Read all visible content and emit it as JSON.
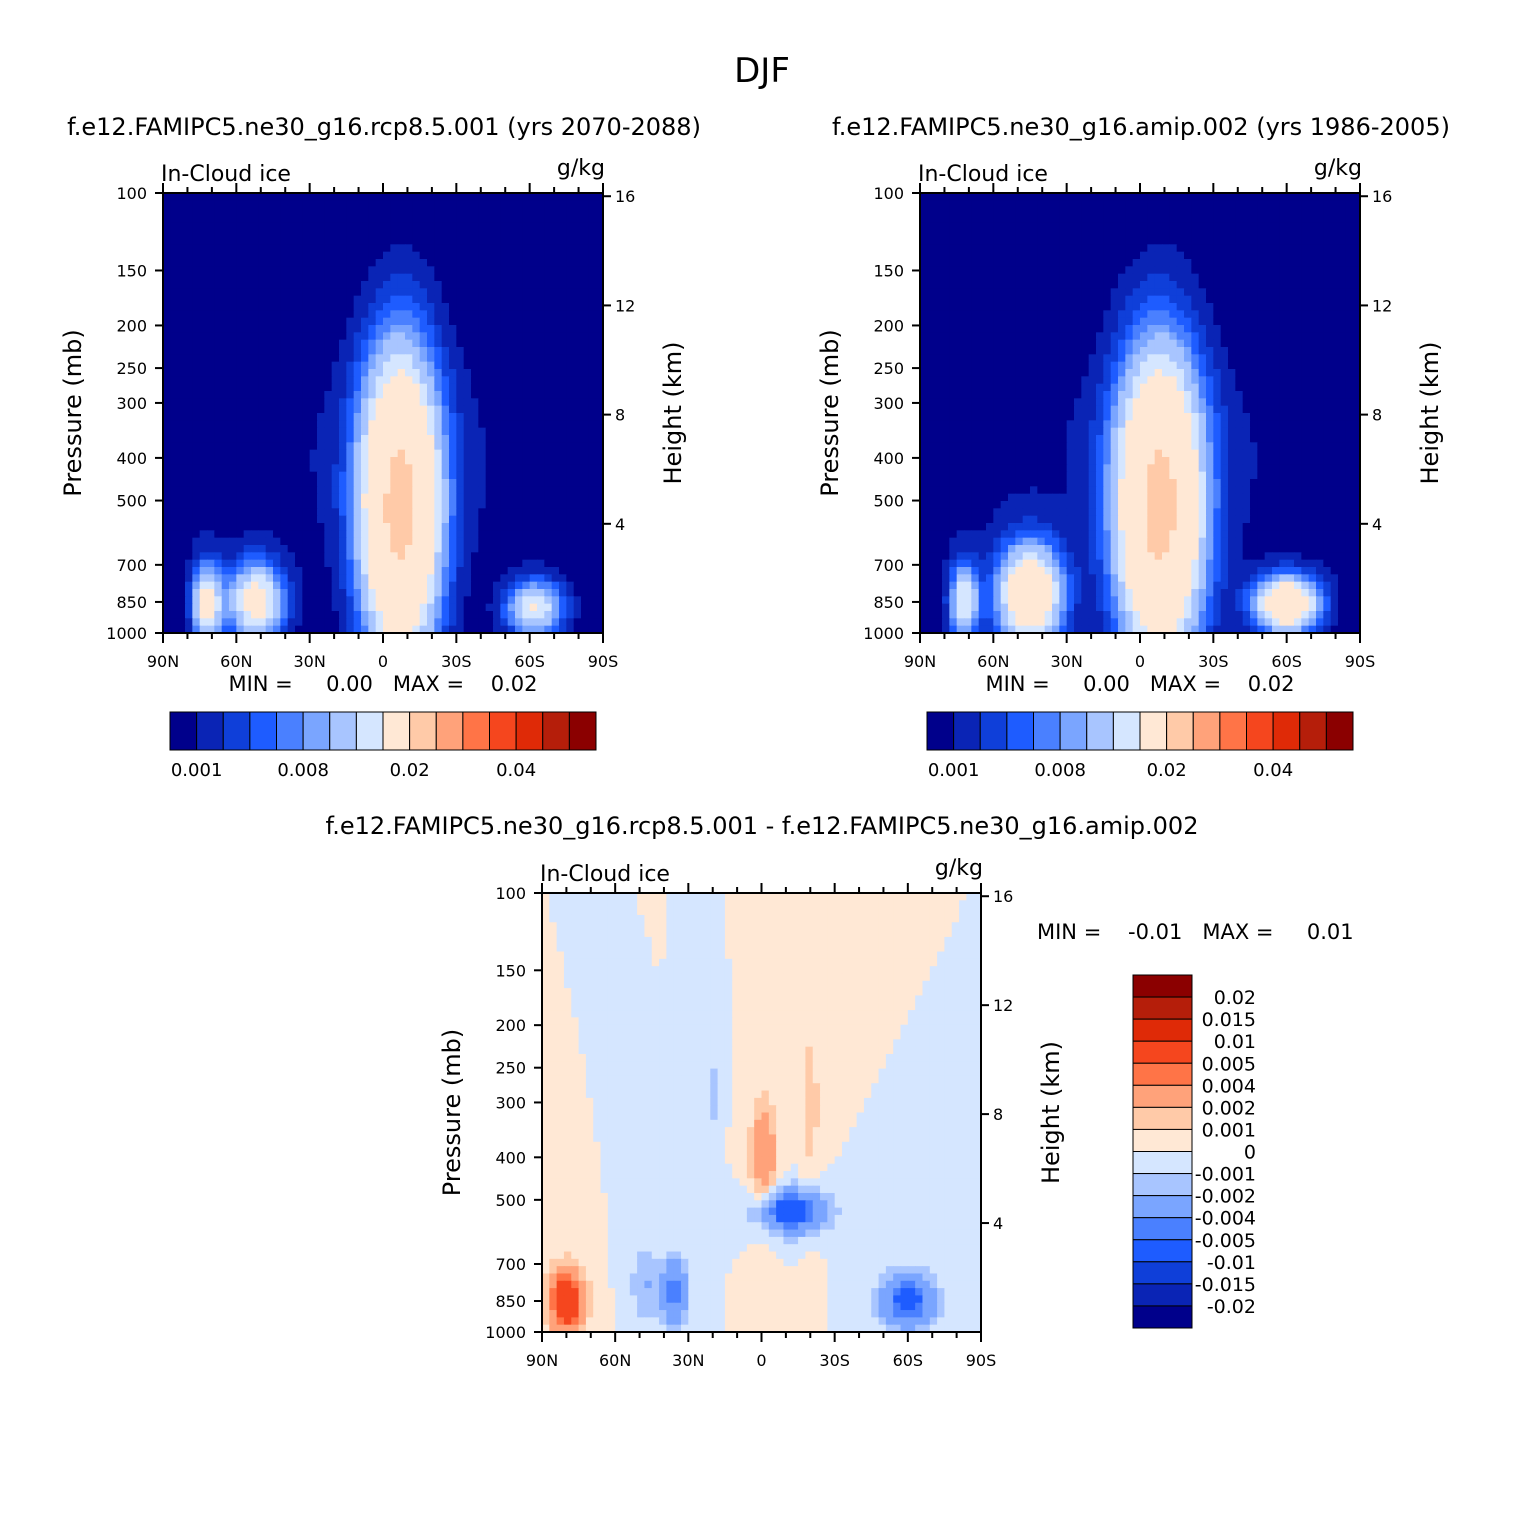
{
  "page_title": "DJF",
  "panels": [
    {
      "id": "rcp",
      "title": "f.e12.FAMIPC5.ne30_g16.rcp8.5.001 (yrs 2070-2088)",
      "left_label": "In-Cloud ice",
      "units": "g/kg",
      "ylabel_left": "Pressure (mb)",
      "ylabel_right": "Height (km)",
      "stats_text": "MIN =     0.00   MAX =    0.02",
      "colorbar_ticks": [
        "0.001",
        "0.008",
        "0.02",
        "0.04"
      ]
    },
    {
      "id": "amip",
      "title": "f.e12.FAMIPC5.ne30_g16.amip.002 (yrs 1986-2005)",
      "left_label": "In-Cloud ice",
      "units": "g/kg",
      "ylabel_left": "Pressure (mb)",
      "ylabel_right": "Height (km)",
      "stats_text": "MIN =     0.00   MAX =    0.02",
      "colorbar_ticks": [
        "0.001",
        "0.008",
        "0.02",
        "0.04"
      ]
    },
    {
      "id": "diff",
      "title": "f.e12.FAMIPC5.ne30_g16.rcp8.5.001 - f.e12.FAMIPC5.ne30_g16.amip.002",
      "left_label": "In-Cloud ice",
      "units": "g/kg",
      "ylabel_left": "Pressure (mb)",
      "ylabel_right": "Height (km)",
      "stats_text": "MIN =    -0.01   MAX =     0.01",
      "colorbar_ticks": [
        "0.02",
        "0.015",
        "0.01",
        "0.005",
        "0.004",
        "0.002",
        "0.001",
        "0",
        "-0.001",
        "-0.002",
        "-0.004",
        "-0.005",
        "-0.01",
        "-0.015",
        "-0.02"
      ]
    }
  ],
  "colors": {
    "abs_palette": [
      "#00008b",
      "#0a24b5",
      "#0f3fd9",
      "#1e5cff",
      "#4a80ff",
      "#7aa5ff",
      "#a8c5ff",
      "#d5e6ff",
      "#ffe8d5",
      "#ffcaa8",
      "#ffa27a",
      "#ff7447",
      "#f5461e",
      "#df2a07",
      "#b51e0a",
      "#8b0000"
    ],
    "diff_palette": [
      "#00008b",
      "#0a24b5",
      "#0f3fd9",
      "#1e5cff",
      "#4a80ff",
      "#7aa5ff",
      "#a8c5ff",
      "#d5e6ff",
      "#ffe8d5",
      "#ffcaa8",
      "#ffa27a",
      "#ff7447",
      "#f5461e",
      "#df2a07",
      "#b51e0a",
      "#8b0000"
    ],
    "background_field_abs": "#00008b",
    "background_field_diff": "#ffe8d5"
  },
  "chart_data": [
    {
      "type": "heatmap",
      "title": "f.e12.FAMIPC5.ne30_g16.rcp8.5.001 (yrs 2070-2088)",
      "variable": "In-Cloud ice",
      "units": "g/kg",
      "xlabel": "",
      "ylabel": "Pressure (mb)",
      "y2label": "Height (km)",
      "x_ticks": [
        "90N",
        "60N",
        "30N",
        "0",
        "30S",
        "60S",
        "90S"
      ],
      "x_tick_values": [
        90,
        60,
        30,
        0,
        -30,
        -60,
        -90
      ],
      "y_ticks": [
        100,
        150,
        200,
        250,
        300,
        400,
        500,
        700,
        850,
        1000
      ],
      "y2_ticks": [
        4,
        8,
        12,
        16
      ],
      "ylim": [
        1000,
        100
      ],
      "xlim": [
        90,
        -90
      ],
      "min": 0.0,
      "max": 0.02,
      "levels": [
        0.001,
        0.002,
        0.003,
        0.004,
        0.005,
        0.006,
        0.008,
        0.01,
        0.02,
        0.025,
        0.03,
        0.035,
        0.04,
        0.045,
        0.05
      ],
      "features": [
        {
          "lat": -7,
          "p": 520,
          "peak": 0.022,
          "sx": 11,
          "sy": 0.55
        },
        {
          "lat": 72,
          "p": 860,
          "peak": 0.012,
          "sx": 4,
          "sy": 0.14
        },
        {
          "lat": 52,
          "p": 850,
          "peak": 0.012,
          "sx": 8,
          "sy": 0.14
        },
        {
          "lat": -62,
          "p": 880,
          "peak": 0.01,
          "sx": 8,
          "sy": 0.1
        }
      ]
    },
    {
      "type": "heatmap",
      "title": "f.e12.FAMIPC5.ne30_g16.amip.002 (yrs 1986-2005)",
      "variable": "In-Cloud ice",
      "units": "g/kg",
      "ylabel": "Pressure (mb)",
      "y2label": "Height (km)",
      "x_ticks": [
        "90N",
        "60N",
        "30N",
        "0",
        "30S",
        "60S",
        "90S"
      ],
      "x_tick_values": [
        90,
        60,
        30,
        0,
        -30,
        -60,
        -90
      ],
      "y_ticks": [
        100,
        150,
        200,
        250,
        300,
        400,
        500,
        700,
        850,
        1000
      ],
      "y2_ticks": [
        4,
        8,
        12,
        16
      ],
      "ylim": [
        1000,
        100
      ],
      "xlim": [
        90,
        -90
      ],
      "min": 0.0,
      "max": 0.02,
      "levels": [
        0.001,
        0.002,
        0.003,
        0.004,
        0.005,
        0.006,
        0.008,
        0.01,
        0.02,
        0.025,
        0.03,
        0.035,
        0.04,
        0.045,
        0.05
      ],
      "features": [
        {
          "lat": -8,
          "p": 520,
          "peak": 0.022,
          "sx": 12,
          "sy": 0.55
        },
        {
          "lat": 72,
          "p": 850,
          "peak": 0.01,
          "sx": 4,
          "sy": 0.14
        },
        {
          "lat": 45,
          "p": 820,
          "peak": 0.016,
          "sx": 9,
          "sy": 0.18
        },
        {
          "lat": -60,
          "p": 860,
          "peak": 0.016,
          "sx": 9,
          "sy": 0.1
        }
      ]
    },
    {
      "type": "heatmap",
      "title": "f.e12.FAMIPC5.ne30_g16.rcp8.5.001 - f.e12.FAMIPC5.ne30_g16.amip.002",
      "variable": "In-Cloud ice",
      "units": "g/kg",
      "ylabel": "Pressure (mb)",
      "y2label": "Height (km)",
      "x_ticks": [
        "90N",
        "60N",
        "30N",
        "0",
        "30S",
        "60S",
        "90S"
      ],
      "x_tick_values": [
        90,
        60,
        30,
        0,
        -30,
        -60,
        -90
      ],
      "y_ticks": [
        100,
        150,
        200,
        250,
        300,
        400,
        500,
        700,
        850,
        1000
      ],
      "y2_ticks": [
        4,
        8,
        12,
        16
      ],
      "ylim": [
        1000,
        100
      ],
      "xlim": [
        90,
        -90
      ],
      "min": -0.01,
      "max": 0.01,
      "levels": [
        -0.02,
        -0.015,
        -0.01,
        -0.005,
        -0.004,
        -0.002,
        -0.001,
        0,
        0.001,
        0.002,
        0.004,
        0.005,
        0.01,
        0.015,
        0.02
      ],
      "features": [
        {
          "lat": 80,
          "p": 850,
          "peak": 0.008,
          "sx": 5,
          "sy": 0.12
        },
        {
          "lat": 36,
          "p": 810,
          "peak": -0.005,
          "sx": 4,
          "sy": 0.12
        },
        {
          "lat": 48,
          "p": 780,
          "peak": -0.002,
          "sx": 4,
          "sy": 0.14
        },
        {
          "lat": -12,
          "p": 530,
          "peak": -0.007,
          "sx": 10,
          "sy": 0.08
        },
        {
          "lat": -60,
          "p": 850,
          "peak": -0.006,
          "sx": 8,
          "sy": 0.1
        },
        {
          "lat": -1,
          "p": 400,
          "peak": 0.0035,
          "sx": 4,
          "sy": 0.22
        },
        {
          "lat": 20,
          "p": 290,
          "peak": -0.0015,
          "sx": 2,
          "sy": 0.15
        },
        {
          "lat": -20,
          "p": 300,
          "peak": 0.0015,
          "sx": 3,
          "sy": 0.35
        }
      ]
    }
  ]
}
